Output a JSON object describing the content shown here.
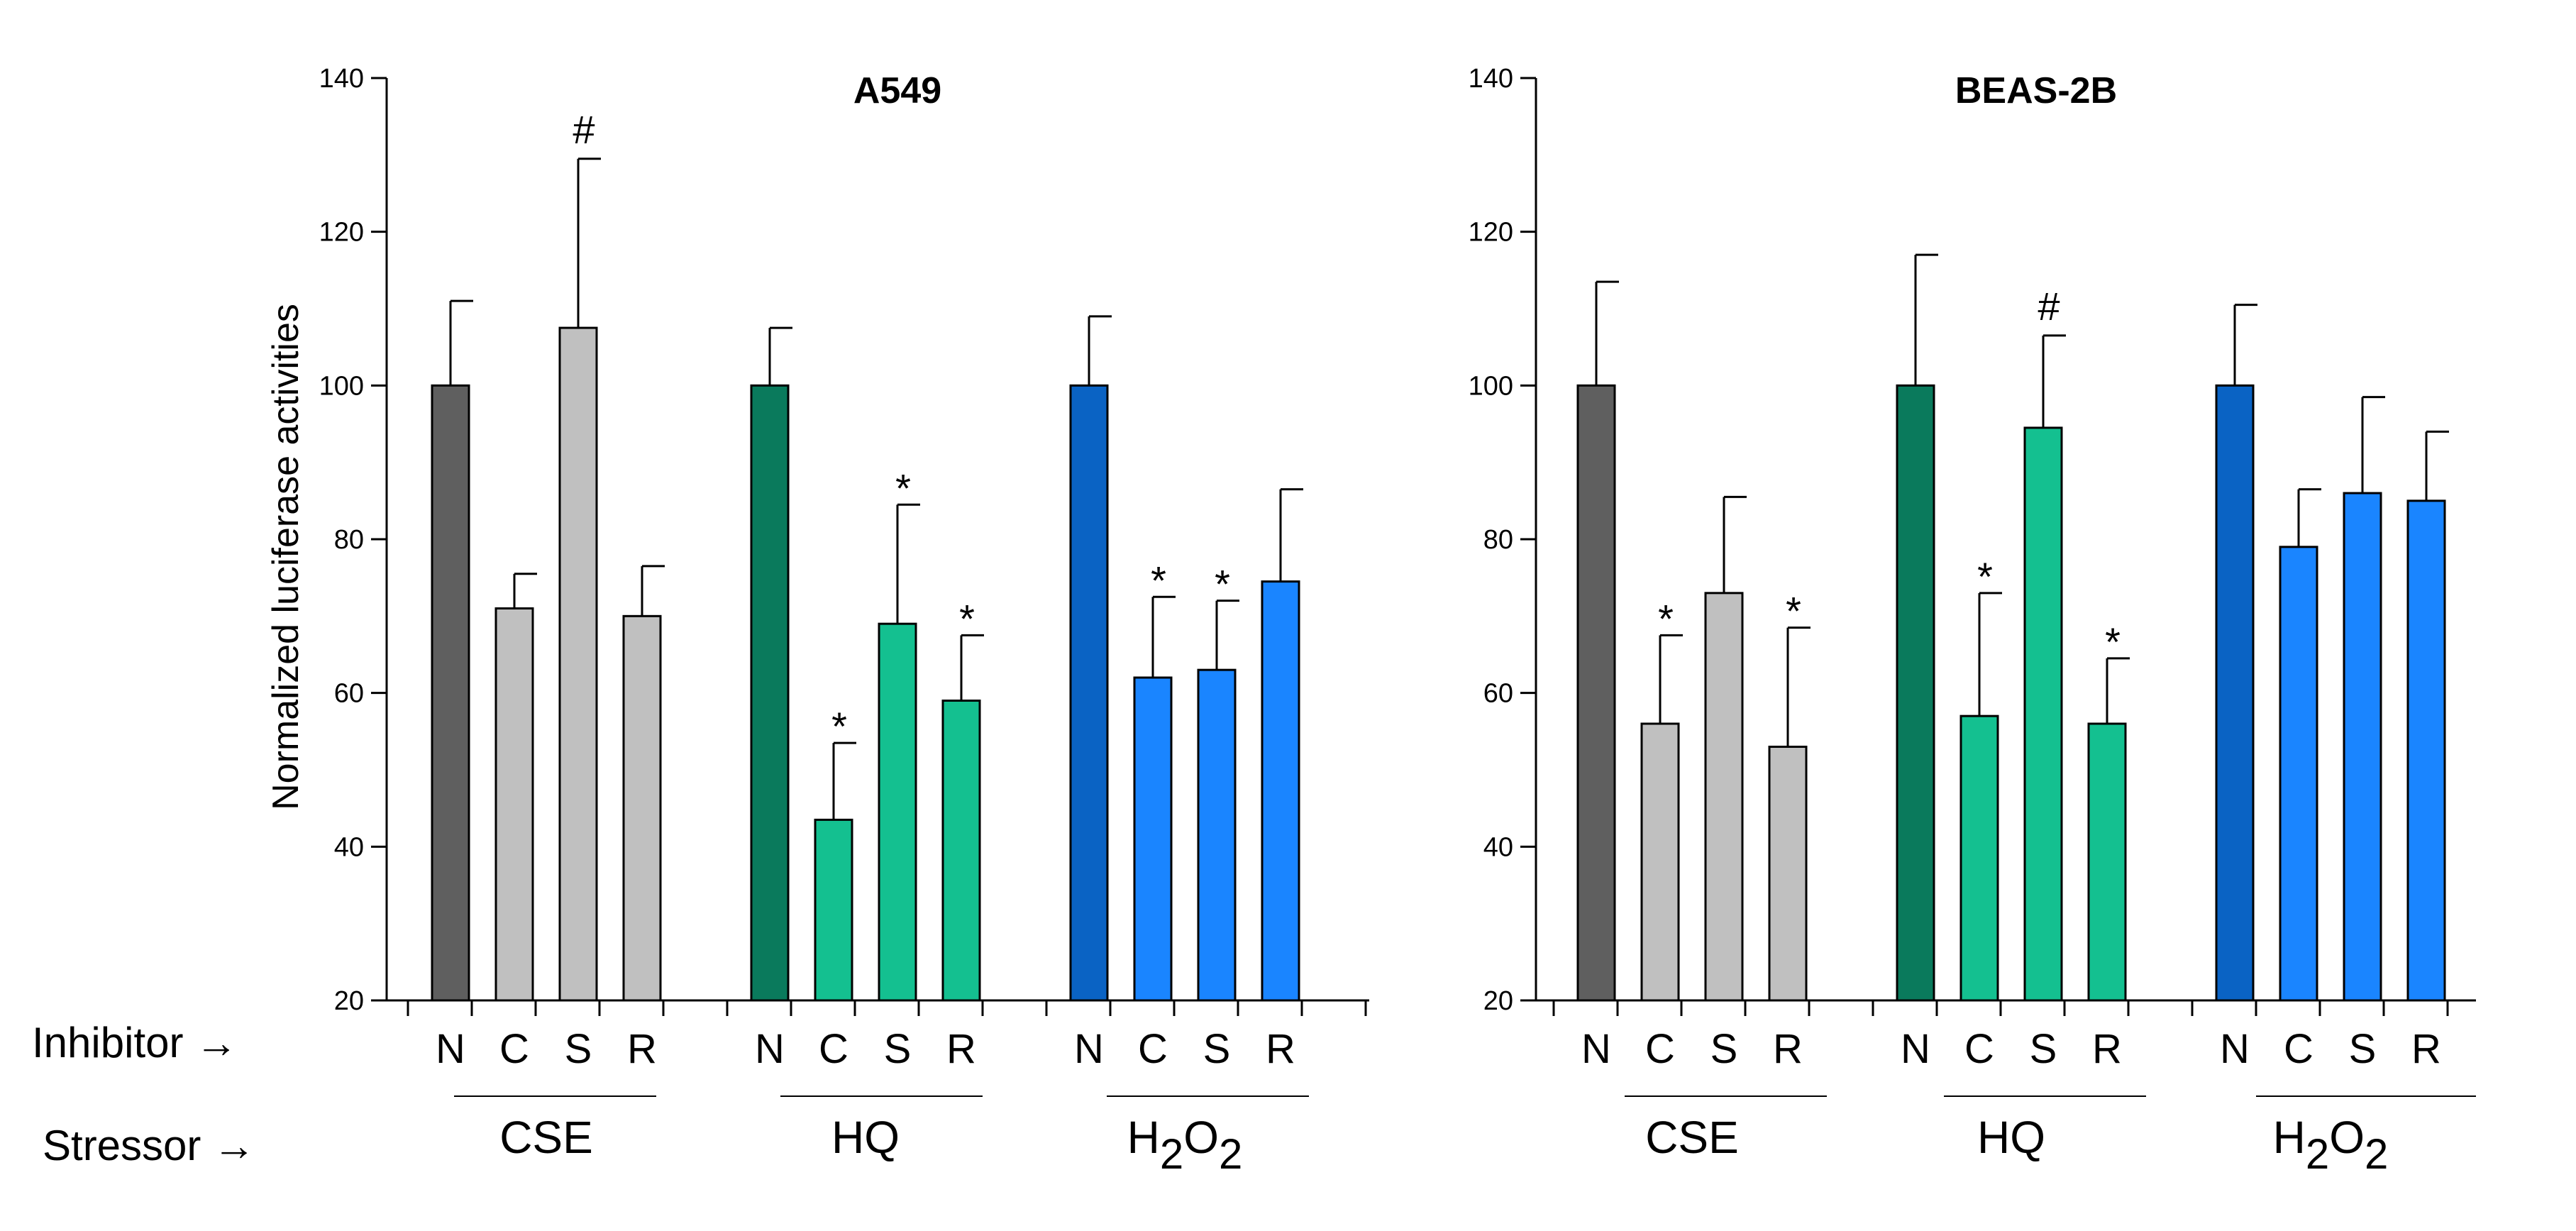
{
  "row_labels": {
    "inhibitor": "Inhibitor →",
    "stressor": "Stressor →"
  },
  "colors": {
    "normal_gray": "#5f5f5f",
    "light_gray": "#c0c0c0",
    "dark_green": "#0a7a5c",
    "teal": "#14c090",
    "dark_blue": "#0a63c4",
    "blue": "#1a85ff"
  },
  "chart_data": [
    {
      "type": "bar",
      "title": "A549",
      "ylabel": "Normalized luciferase activities",
      "xlabel": "",
      "ylim": [
        20,
        140
      ],
      "yticks": [
        "20",
        "40",
        "60",
        "80",
        "100",
        "120",
        "140"
      ],
      "groups": [
        {
          "name": "CSE",
          "sub": "",
          "categories": [
            "N",
            "C",
            "S",
            "R"
          ],
          "values": [
            100,
            71,
            107.5,
            70
          ],
          "errors": [
            11,
            4.5,
            22,
            6.5
          ],
          "annotations": [
            "",
            "",
            "#",
            ""
          ],
          "colors": [
            "#5f5f5f",
            "#c0c0c0",
            "#c0c0c0",
            "#c0c0c0"
          ]
        },
        {
          "name": "HQ",
          "sub": "",
          "categories": [
            "N",
            "C",
            "S",
            "R"
          ],
          "values": [
            100,
            43.5,
            69,
            59
          ],
          "errors": [
            7.5,
            10,
            15.5,
            8.5
          ],
          "annotations": [
            "",
            "*",
            "*",
            "*"
          ],
          "colors": [
            "#0a7a5c",
            "#14c090",
            "#14c090",
            "#14c090"
          ]
        },
        {
          "name": "H",
          "sub": "2",
          "name2": "O",
          "sub2": "2",
          "categories": [
            "N",
            "C",
            "S",
            "R"
          ],
          "values": [
            100,
            62,
            63,
            74.5
          ],
          "errors": [
            9,
            10.5,
            9,
            12
          ],
          "annotations": [
            "",
            "*",
            "*",
            ""
          ],
          "colors": [
            "#0a63c4",
            "#1a85ff",
            "#1a85ff",
            "#1a85ff"
          ]
        }
      ]
    },
    {
      "type": "bar",
      "title": "BEAS-2B",
      "ylabel": "",
      "xlabel": "",
      "ylim": [
        20,
        140
      ],
      "yticks": [
        "20",
        "40",
        "60",
        "80",
        "100",
        "120",
        "140"
      ],
      "groups": [
        {
          "name": "CSE",
          "sub": "",
          "categories": [
            "N",
            "C",
            "S",
            "R"
          ],
          "values": [
            100,
            56,
            73,
            53
          ],
          "errors": [
            13.5,
            11.5,
            12.5,
            15.5
          ],
          "annotations": [
            "",
            "*",
            "",
            "*"
          ],
          "colors": [
            "#5f5f5f",
            "#c0c0c0",
            "#c0c0c0",
            "#c0c0c0"
          ]
        },
        {
          "name": "HQ",
          "sub": "",
          "categories": [
            "N",
            "C",
            "S",
            "R"
          ],
          "values": [
            100,
            57,
            94.5,
            56
          ],
          "errors": [
            17,
            16,
            12,
            8.5
          ],
          "annotations": [
            "",
            "*",
            "#",
            "*"
          ],
          "colors": [
            "#0a7a5c",
            "#14c090",
            "#14c090",
            "#14c090"
          ]
        },
        {
          "name": "H",
          "sub": "2",
          "name2": "O",
          "sub2": "2",
          "categories": [
            "N",
            "C",
            "S",
            "R"
          ],
          "values": [
            100,
            79,
            86,
            85
          ],
          "errors": [
            10.5,
            7.5,
            12.5,
            9
          ],
          "annotations": [
            "",
            "",
            "",
            ""
          ],
          "colors": [
            "#0a63c4",
            "#1a85ff",
            "#1a85ff",
            "#1a85ff"
          ]
        }
      ]
    }
  ]
}
